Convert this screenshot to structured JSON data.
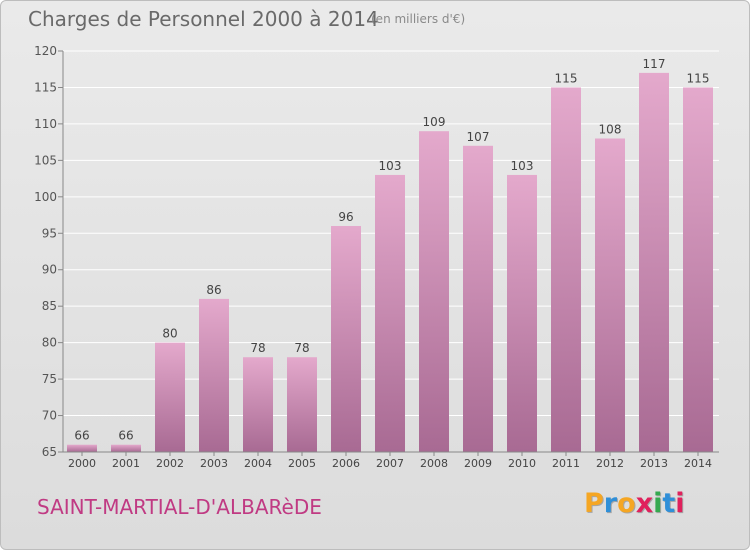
{
  "header": {
    "title": "Charges de Personnel 2000 à 2014",
    "subtitle": "(en milliers d'€)"
  },
  "footer": {
    "commune": "SAINT-MARTIAL-D'ALBARèDE",
    "logo_letters": [
      "P",
      "r",
      "o",
      "x",
      "i",
      "t",
      "i"
    ],
    "logo_colors": [
      "#f5a623",
      "#2f8fd8",
      "#f5a623",
      "#e0215c",
      "#35a94f",
      "#2f8fd8",
      "#e0215c"
    ]
  },
  "colors": {
    "bar_top": "#e4a9cc",
    "bar_bottom": "#a86a93",
    "axis": "#888888",
    "grid": "#ffffff",
    "commune_text": "#c03a83"
  },
  "chart_data": {
    "type": "bar",
    "categories": [
      "2000",
      "2001",
      "2002",
      "2003",
      "2004",
      "2005",
      "2006",
      "2007",
      "2008",
      "2009",
      "2010",
      "2011",
      "2012",
      "2013",
      "2014"
    ],
    "values": [
      66,
      66,
      80,
      86,
      78,
      78,
      96,
      103,
      109,
      107,
      103,
      115,
      108,
      117,
      115
    ],
    "title": "Charges de Personnel 2000 à 2014",
    "xlabel": "",
    "ylabel": "",
    "ylim": [
      65,
      120
    ],
    "yticks": [
      65,
      70,
      75,
      80,
      85,
      90,
      95,
      100,
      105,
      110,
      115,
      120
    ],
    "grid": true,
    "data_labels": true
  }
}
